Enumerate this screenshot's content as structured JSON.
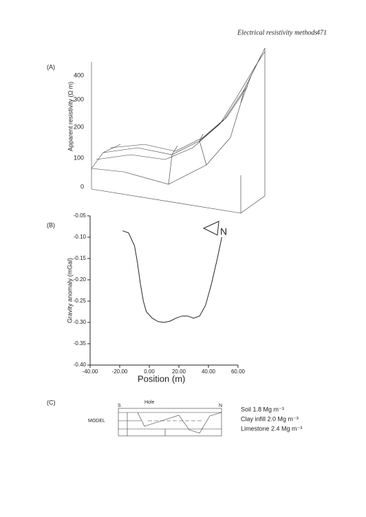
{
  "header": {
    "title": "Electrical resistivity methods",
    "page": "471"
  },
  "panel_a": {
    "label": "(A)",
    "y_axis_label": "Apparent resistivity (Ω m)",
    "ticks": [
      "0",
      "100",
      "200",
      "300",
      "400"
    ],
    "north": "N"
  },
  "chart_data": {
    "type": "line",
    "label": "(B)",
    "x_label": "Position (m)",
    "y_label": "Gravity anomaly (mGal)",
    "color": "#222222",
    "x": [
      -18,
      -14,
      -10,
      -8,
      -6,
      -4,
      -2,
      2,
      6,
      10,
      14,
      18,
      22,
      26,
      30,
      34,
      38,
      42,
      46,
      49
    ],
    "values": [
      -0.085,
      -0.09,
      -0.12,
      -0.16,
      -0.21,
      -0.25,
      -0.275,
      -0.29,
      -0.298,
      -0.3,
      -0.297,
      -0.29,
      -0.285,
      -0.285,
      -0.29,
      -0.285,
      -0.26,
      -0.21,
      -0.15,
      -0.1
    ],
    "xlim": [
      -40,
      60
    ],
    "ylim": [
      -0.4,
      -0.05
    ],
    "xticks": [
      {
        "value": -40,
        "label": "-40.00"
      },
      {
        "value": -20,
        "label": "-20.00"
      },
      {
        "value": 0,
        "label": "0.00"
      },
      {
        "value": 20,
        "label": "20.00"
      },
      {
        "value": 40,
        "label": "40.00"
      },
      {
        "value": 60,
        "label": "60.00"
      }
    ],
    "yticks": [
      -0.05,
      {
        "value": -0.1,
        "label": "-0.10"
      },
      -0.15,
      {
        "value": -0.2,
        "label": "-0.20"
      },
      -0.25,
      {
        "value": -0.3,
        "label": "-0.30"
      },
      -0.35,
      {
        "value": -0.4,
        "label": "-0.40"
      }
    ]
  },
  "panel_c": {
    "label": "(C)",
    "model": "MODEL",
    "hole": "Hole",
    "south": "S",
    "north": "N",
    "legend": [
      "Soil 1.8 Mg m⁻³",
      "Clay infill 2.0 Mg m⁻³",
      "Limestone 2.4 Mg m⁻³"
    ]
  }
}
